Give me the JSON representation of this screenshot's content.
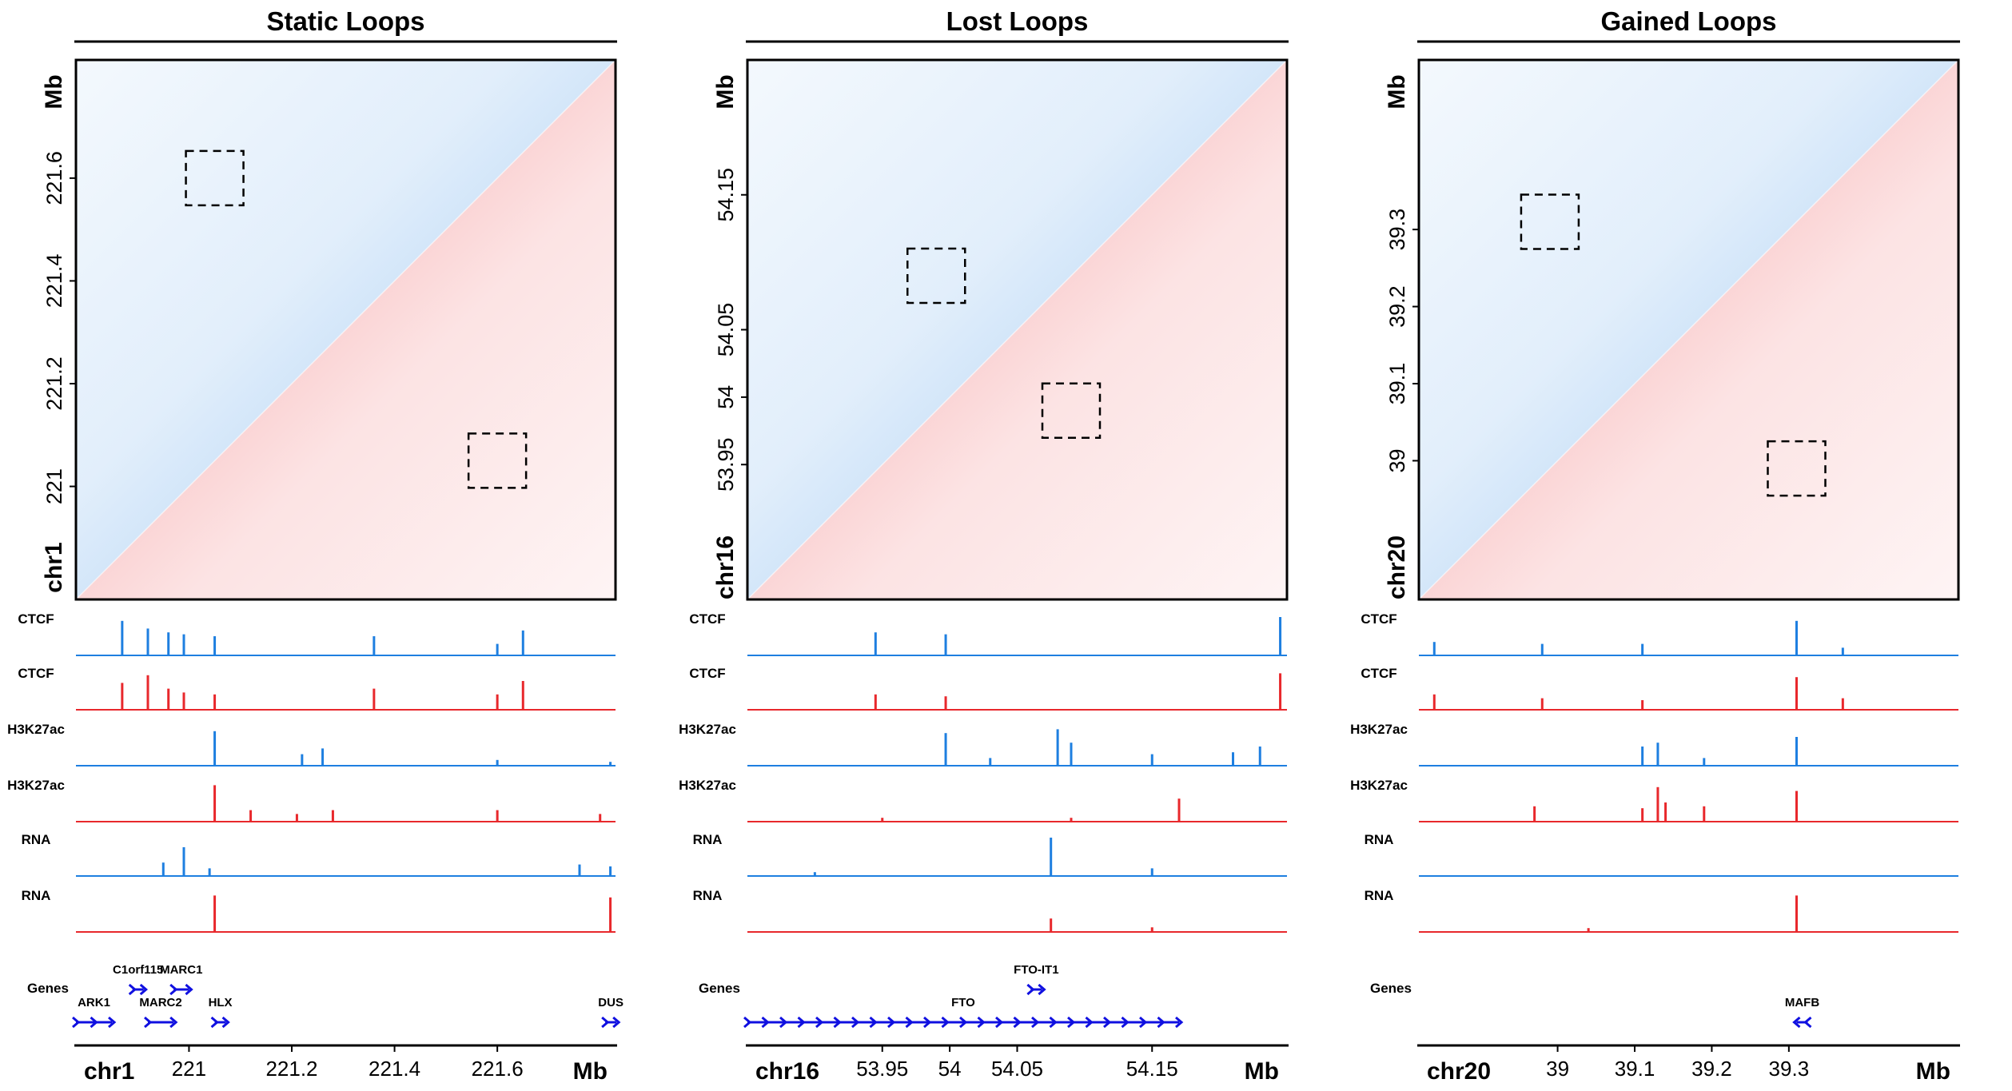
{
  "colors": {
    "blue": "#1e7fe0",
    "red": "#e8282c",
    "gene_blue": "#1010e0",
    "box": "#000000"
  },
  "track_labels": [
    "CTCF",
    "CTCF",
    "H3K27ac",
    "H3K27ac",
    "RNA",
    "RNA"
  ],
  "genes_label": "Genes",
  "mb_label": "Mb",
  "chart_data": [
    {
      "type": "heatmap",
      "title": "Static Loops",
      "chrom": "chr1",
      "range": [
        220.78,
        221.83
      ],
      "ticks": [
        221,
        221.2,
        221.4,
        221.6
      ],
      "tick_labels": [
        "221",
        "221.2",
        "221.4",
        "221.6"
      ],
      "upper_color": "blue",
      "lower_color": "red",
      "loops": [
        {
          "x": 221.05,
          "y": 221.6,
          "triangle": "upper"
        },
        {
          "x": 221.6,
          "y": 221.05,
          "triangle": "lower"
        }
      ],
      "tracks": [
        {
          "label": "CTCF",
          "color": "blue",
          "peaks": [
            [
              220.87,
              0.9
            ],
            [
              220.92,
              0.7
            ],
            [
              220.96,
              0.6
            ],
            [
              220.99,
              0.55
            ],
            [
              221.05,
              0.5
            ],
            [
              221.36,
              0.5
            ],
            [
              221.6,
              0.3
            ],
            [
              221.65,
              0.65
            ]
          ]
        },
        {
          "label": "CTCF",
          "color": "red",
          "peaks": [
            [
              220.87,
              0.7
            ],
            [
              220.92,
              0.9
            ],
            [
              220.96,
              0.55
            ],
            [
              220.99,
              0.45
            ],
            [
              221.05,
              0.4
            ],
            [
              221.36,
              0.55
            ],
            [
              221.6,
              0.4
            ],
            [
              221.65,
              0.75
            ]
          ]
        },
        {
          "label": "H3K27ac",
          "color": "blue",
          "peaks": [
            [
              221.05,
              0.9
            ],
            [
              221.22,
              0.3
            ],
            [
              221.26,
              0.45
            ],
            [
              221.6,
              0.15
            ],
            [
              221.82,
              0.1
            ]
          ]
        },
        {
          "label": "H3K27ac",
          "color": "red",
          "peaks": [
            [
              221.05,
              0.95
            ],
            [
              221.12,
              0.3
            ],
            [
              221.21,
              0.2
            ],
            [
              221.28,
              0.3
            ],
            [
              221.6,
              0.3
            ],
            [
              221.8,
              0.2
            ]
          ]
        },
        {
          "label": "RNA",
          "color": "blue",
          "peaks": [
            [
              220.95,
              0.35
            ],
            [
              220.99,
              0.75
            ],
            [
              221.04,
              0.2
            ],
            [
              221.76,
              0.3
            ],
            [
              221.82,
              0.25
            ]
          ]
        },
        {
          "label": "RNA",
          "color": "red",
          "peaks": [
            [
              221.05,
              0.95
            ],
            [
              221.82,
              0.9
            ]
          ]
        }
      ],
      "genes": [
        {
          "name": "ARK1",
          "row": 2,
          "start": 220.78,
          "end": 220.85,
          "dir": "+"
        },
        {
          "name": "C1orf115",
          "row": 1,
          "start": 220.89,
          "end": 220.9,
          "dir": "+"
        },
        {
          "name": "MARC2",
          "row": 2,
          "start": 220.92,
          "end": 220.97,
          "dir": "+"
        },
        {
          "name": "MARC1",
          "row": 1,
          "start": 220.97,
          "end": 221.0,
          "dir": "+"
        },
        {
          "name": "HLX",
          "row": 2,
          "start": 221.05,
          "end": 221.06,
          "dir": "+"
        },
        {
          "name": "DUS",
          "row": 2,
          "start": 221.81,
          "end": 221.83,
          "dir": "+"
        }
      ],
      "axis_ticks": [
        221,
        221.2,
        221.4,
        221.6
      ],
      "axis_tick_labels": [
        "221",
        "221.2",
        "221.4",
        "221.6"
      ]
    },
    {
      "type": "heatmap",
      "title": "Lost Loops",
      "chrom": "chr16",
      "range": [
        53.85,
        54.25
      ],
      "ticks": [
        53.95,
        54,
        54.05,
        54.15
      ],
      "tick_labels": [
        "53.95",
        "54",
        "54.05",
        "54.15"
      ],
      "upper_color": "blue",
      "lower_color": "red",
      "loops": [
        {
          "x": 53.99,
          "y": 54.09,
          "triangle": "upper"
        },
        {
          "x": 54.09,
          "y": 53.99,
          "triangle": "lower"
        }
      ],
      "tracks": [
        {
          "label": "CTCF",
          "color": "blue",
          "peaks": [
            [
              53.945,
              0.6
            ],
            [
              53.997,
              0.55
            ],
            [
              54.245,
              1.0
            ]
          ]
        },
        {
          "label": "CTCF",
          "color": "red",
          "peaks": [
            [
              53.945,
              0.4
            ],
            [
              53.997,
              0.35
            ],
            [
              54.245,
              0.95
            ]
          ]
        },
        {
          "label": "H3K27ac",
          "color": "blue",
          "peaks": [
            [
              53.997,
              0.85
            ],
            [
              54.03,
              0.2
            ],
            [
              54.08,
              0.95
            ],
            [
              54.09,
              0.6
            ],
            [
              54.15,
              0.3
            ],
            [
              54.21,
              0.35
            ],
            [
              54.23,
              0.5
            ]
          ]
        },
        {
          "label": "H3K27ac",
          "color": "red",
          "peaks": [
            [
              54.17,
              0.6
            ],
            [
              54.09,
              0.1
            ],
            [
              53.95,
              0.1
            ]
          ]
        },
        {
          "label": "RNA",
          "color": "blue",
          "peaks": [
            [
              54.075,
              1.0
            ],
            [
              54.15,
              0.2
            ],
            [
              53.9,
              0.1
            ]
          ]
        },
        {
          "label": "RNA",
          "color": "red",
          "peaks": [
            [
              54.075,
              0.35
            ],
            [
              54.15,
              0.12
            ]
          ]
        }
      ],
      "genes": [
        {
          "name": "FTO",
          "row": 2,
          "start": 53.85,
          "end": 54.17,
          "dir": "+"
        },
        {
          "name": "FTO-IT1",
          "row": 1,
          "start": 54.06,
          "end": 54.065,
          "dir": "+"
        }
      ],
      "axis_ticks": [
        53.95,
        54,
        54.05,
        54.15
      ],
      "axis_tick_labels": [
        "53.95",
        "54",
        "54.05",
        "54.15"
      ]
    },
    {
      "type": "heatmap",
      "title": "Gained Loops",
      "chrom": "chr20",
      "range": [
        38.82,
        39.52
      ],
      "ticks": [
        39,
        39.1,
        39.2,
        39.3
      ],
      "tick_labels": [
        "39",
        "39.1",
        "39.2",
        "39.3"
      ],
      "upper_color": "blue",
      "lower_color": "red",
      "loops": [
        {
          "x": 38.99,
          "y": 39.31,
          "triangle": "upper"
        },
        {
          "x": 39.31,
          "y": 38.99,
          "triangle": "lower"
        }
      ],
      "tracks": [
        {
          "label": "CTCF",
          "color": "blue",
          "peaks": [
            [
              38.84,
              0.35
            ],
            [
              38.98,
              0.3
            ],
            [
              39.11,
              0.3
            ],
            [
              39.31,
              0.9
            ],
            [
              39.37,
              0.2
            ]
          ]
        },
        {
          "label": "CTCF",
          "color": "red",
          "peaks": [
            [
              38.84,
              0.4
            ],
            [
              38.98,
              0.3
            ],
            [
              39.11,
              0.25
            ],
            [
              39.31,
              0.85
            ],
            [
              39.37,
              0.3
            ]
          ]
        },
        {
          "label": "H3K27ac",
          "color": "blue",
          "peaks": [
            [
              39.11,
              0.5
            ],
            [
              39.13,
              0.6
            ],
            [
              39.31,
              0.75
            ],
            [
              39.19,
              0.2
            ]
          ]
        },
        {
          "label": "H3K27ac",
          "color": "red",
          "peaks": [
            [
              38.97,
              0.4
            ],
            [
              39.11,
              0.35
            ],
            [
              39.13,
              0.9
            ],
            [
              39.14,
              0.5
            ],
            [
              39.19,
              0.4
            ],
            [
              39.31,
              0.8
            ]
          ]
        },
        {
          "label": "RNA",
          "color": "blue",
          "peaks": []
        },
        {
          "label": "RNA",
          "color": "red",
          "peaks": [
            [
              39.31,
              0.95
            ],
            [
              39.04,
              0.1
            ]
          ]
        }
      ],
      "genes": [
        {
          "name": "MAFB",
          "row": 2,
          "start": 39.31,
          "end": 39.315,
          "dir": "-"
        }
      ],
      "axis_ticks": [
        39,
        39.1,
        39.2,
        39.3
      ],
      "axis_tick_labels": [
        "39",
        "39.1",
        "39.2",
        "39.3"
      ]
    }
  ]
}
